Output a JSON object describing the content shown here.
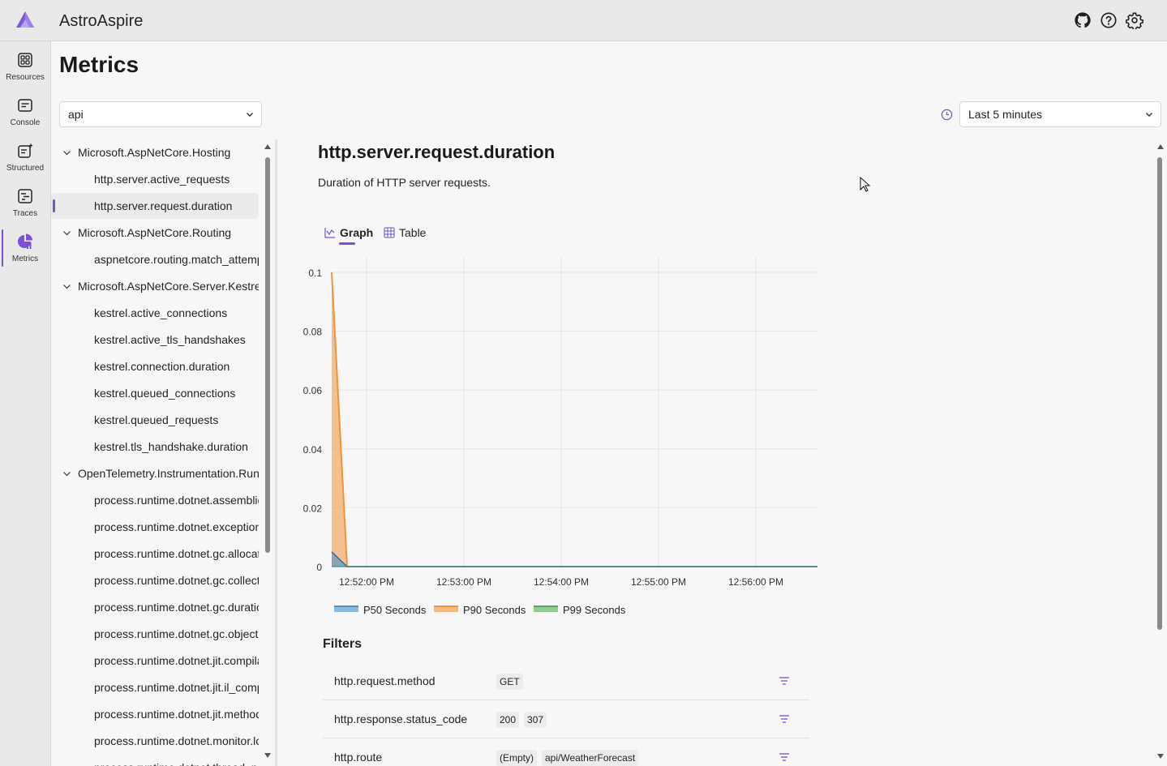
{
  "app": {
    "title": "AstroAspire"
  },
  "header_icons": [
    "github-icon",
    "help-icon",
    "settings-gear-icon"
  ],
  "nav": {
    "items": [
      {
        "label": "Resources",
        "icon": "resources-grid-icon"
      },
      {
        "label": "Console",
        "icon": "console-icon"
      },
      {
        "label": "Structured",
        "icon": "structured-logs-icon"
      },
      {
        "label": "Traces",
        "icon": "traces-icon"
      },
      {
        "label": "Metrics",
        "icon": "metrics-pie-icon",
        "active": true
      }
    ]
  },
  "page": {
    "title": "Metrics"
  },
  "resource_select": {
    "value": "api"
  },
  "time_select": {
    "value": "Last 5 minutes"
  },
  "tree": [
    {
      "label": "Microsoft.AspNetCore.Hosting",
      "type": "group"
    },
    {
      "label": "http.server.active_requests",
      "type": "leaf"
    },
    {
      "label": "http.server.request.duration",
      "type": "leaf",
      "selected": true
    },
    {
      "label": "Microsoft.AspNetCore.Routing",
      "type": "group"
    },
    {
      "label": "aspnetcore.routing.match_attempts",
      "type": "leaf"
    },
    {
      "label": "Microsoft.AspNetCore.Server.Kestrel",
      "type": "group"
    },
    {
      "label": "kestrel.active_connections",
      "type": "leaf"
    },
    {
      "label": "kestrel.active_tls_handshakes",
      "type": "leaf"
    },
    {
      "label": "kestrel.connection.duration",
      "type": "leaf"
    },
    {
      "label": "kestrel.queued_connections",
      "type": "leaf"
    },
    {
      "label": "kestrel.queued_requests",
      "type": "leaf"
    },
    {
      "label": "kestrel.tls_handshake.duration",
      "type": "leaf"
    },
    {
      "label": "OpenTelemetry.Instrumentation.Runtime",
      "type": "group"
    },
    {
      "label": "process.runtime.dotnet.assemblies.count",
      "type": "leaf"
    },
    {
      "label": "process.runtime.dotnet.exceptions.count",
      "type": "leaf"
    },
    {
      "label": "process.runtime.dotnet.gc.allocations.size",
      "type": "leaf"
    },
    {
      "label": "process.runtime.dotnet.gc.collections.count",
      "type": "leaf"
    },
    {
      "label": "process.runtime.dotnet.gc.duration",
      "type": "leaf"
    },
    {
      "label": "process.runtime.dotnet.gc.objects.size",
      "type": "leaf"
    },
    {
      "label": "process.runtime.dotnet.jit.compilation_time",
      "type": "leaf"
    },
    {
      "label": "process.runtime.dotnet.jit.il_compiled.size",
      "type": "leaf"
    },
    {
      "label": "process.runtime.dotnet.jit.methods_compiled.count",
      "type": "leaf"
    },
    {
      "label": "process.runtime.dotnet.monitor.lock_contention.count",
      "type": "leaf"
    },
    {
      "label": "process.runtime.dotnet.thread_pool.threads.count",
      "type": "leaf"
    }
  ],
  "metric": {
    "title": "http.server.request.duration",
    "description": "Duration of HTTP server requests."
  },
  "tabs": [
    {
      "label": "Graph",
      "icon": "graph-icon",
      "active": true
    },
    {
      "label": "Table",
      "icon": "table-icon"
    }
  ],
  "chart_data": {
    "type": "area",
    "x": [
      "12:51:36 PM",
      "12:51:46 PM",
      "12:52:00 PM",
      "12:53:00 PM",
      "12:54:00 PM",
      "12:55:00 PM",
      "12:56:00 PM",
      "12:56:36 PM"
    ],
    "x_ticks": [
      "12:52:00 PM",
      "12:53:00 PM",
      "12:54:00 PM",
      "12:55:00 PM",
      "12:56:00 PM"
    ],
    "ylim": [
      0,
      0.1
    ],
    "y_ticks": [
      "0",
      "0.02",
      "0.04",
      "0.06",
      "0.08",
      "0.1"
    ],
    "grid": true,
    "legend_position": "bottom",
    "series": [
      {
        "name": "P50 Seconds",
        "color": "#4a90c8",
        "values": [
          0.005,
          0,
          0,
          0,
          0,
          0,
          0,
          0
        ]
      },
      {
        "name": "P90 Seconds",
        "color": "#f0933a",
        "values": [
          0.1,
          0,
          0,
          0,
          0,
          0,
          0,
          0
        ]
      },
      {
        "name": "P99 Seconds",
        "color": "#4caf50",
        "values": [
          0.1,
          0,
          0,
          0,
          0,
          0,
          0,
          0
        ]
      }
    ]
  },
  "filters": {
    "title": "Filters",
    "rows": [
      {
        "name": "http.request.method",
        "values": [
          "GET"
        ]
      },
      {
        "name": "http.response.status_code",
        "values": [
          "200",
          "307"
        ]
      },
      {
        "name": "http.route",
        "values": [
          "(Empty)",
          "api/WeatherForecast"
        ]
      }
    ]
  }
}
